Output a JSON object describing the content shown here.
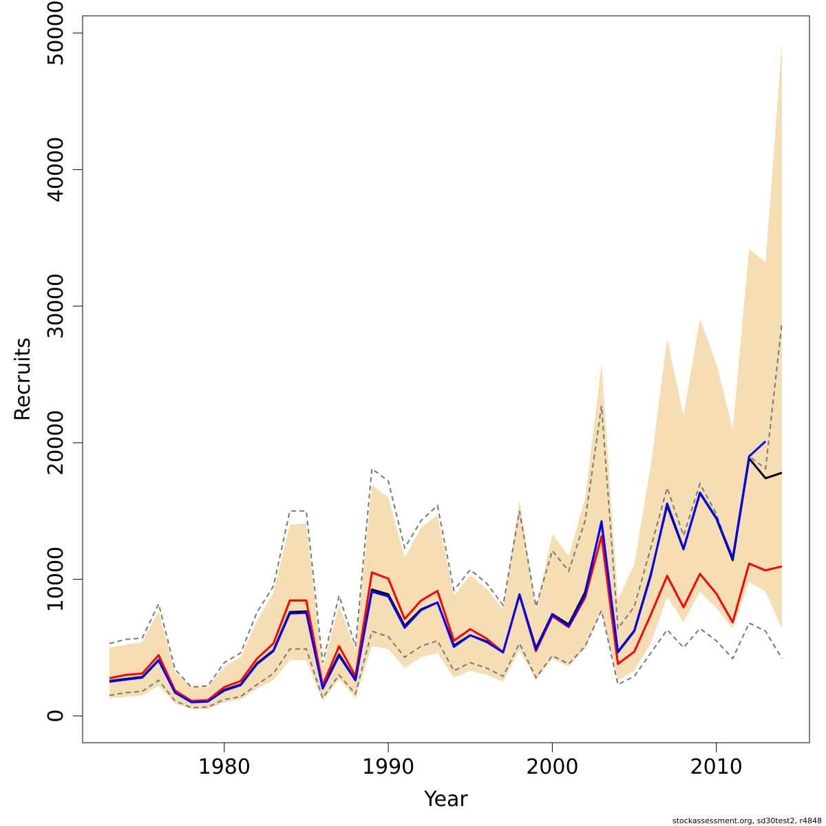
{
  "chart_data": {
    "type": "line",
    "title": "",
    "xlabel": "Year",
    "ylabel": "Recruits",
    "xlim": [
      1973,
      2014
    ],
    "ylim": [
      0,
      50000
    ],
    "x_ticks": [
      1980,
      1990,
      2000,
      2010
    ],
    "y_ticks": [
      0,
      10000,
      20000,
      30000,
      40000,
      50000
    ],
    "grid": false,
    "legend": "none",
    "colors": {
      "band": "#F5DEB3",
      "red_series": "#FF0000",
      "blue_series": "#0000FF",
      "black_series": "#000000",
      "dashed": "#777777"
    },
    "years": [
      1973,
      1974,
      1975,
      1976,
      1977,
      1978,
      1979,
      1980,
      1981,
      1982,
      1983,
      1984,
      1985,
      1986,
      1987,
      1988,
      1989,
      1990,
      1991,
      1992,
      1993,
      1994,
      1995,
      1996,
      1997,
      1998,
      1999,
      2000,
      2001,
      2002,
      2003,
      2004,
      2005,
      2006,
      2007,
      2008,
      2009,
      2010,
      2011,
      2012,
      2013,
      2014
    ],
    "band_upper": [
      5000,
      5200,
      5400,
      7700,
      3200,
      2100,
      2100,
      3600,
      4300,
      7000,
      9000,
      14000,
      14100,
      3600,
      8100,
      4800,
      16900,
      16000,
      11600,
      13800,
      14700,
      8800,
      10300,
      9300,
      7800,
      15800,
      7800,
      13300,
      11700,
      15900,
      25800,
      8500,
      11100,
      18300,
      27600,
      22000,
      29100,
      25800,
      21000,
      34200,
      33200,
      49300
    ],
    "band_lower": [
      1300,
      1400,
      1500,
      2200,
      900,
      500,
      500,
      1000,
      1200,
      2000,
      2600,
      4100,
      4100,
      1100,
      2700,
      1300,
      5100,
      4900,
      3500,
      4300,
      4600,
      2800,
      3300,
      3000,
      2500,
      4800,
      2600,
      4200,
      3600,
      4900,
      7600,
      2600,
      3300,
      5300,
      8700,
      6900,
      9100,
      7900,
      6400,
      9800,
      9100,
      6400
    ],
    "series": [
      {
        "values": [
          2750,
          3000,
          3100,
          4450,
          1850,
          1100,
          1150,
          2100,
          2550,
          4200,
          5300,
          8450,
          8450,
          2250,
          5100,
          2900,
          10500,
          10050,
          7100,
          8450,
          9150,
          5500,
          6350,
          5650,
          4650,
          8850,
          4750,
          7300,
          6500,
          8650,
          13150,
          3800,
          4700,
          7400,
          10250,
          7950,
          10400,
          8950,
          6850,
          11150,
          10650,
          10950
        ]
      },
      {
        "values": [
          2550,
          2700,
          2850,
          4100,
          1750,
          1050,
          1100,
          1900,
          2300,
          3850,
          4800,
          7600,
          7650,
          2100,
          4500,
          2650,
          9250,
          8900,
          6600,
          7800,
          8300,
          5150,
          5900,
          5450,
          4650,
          8900,
          4950,
          7450,
          6700,
          9050,
          14150,
          4700,
          6250,
          10350,
          15400,
          12200,
          16300,
          14450,
          11400,
          18850,
          17400,
          17800
        ]
      },
      {
        "values": [
          2500,
          2650,
          2800,
          4050,
          1700,
          1000,
          1050,
          1850,
          2250,
          3800,
          4750,
          7500,
          7550,
          2000,
          4400,
          2600,
          9100,
          8750,
          6450,
          7750,
          8300,
          5050,
          5900,
          5400,
          4650,
          8850,
          4850,
          7400,
          6550,
          8850,
          14250,
          4650,
          6200,
          10250,
          15550,
          12250,
          16350,
          14500,
          11550,
          19000,
          20100,
          null
        ]
      },
      {
        "values": [
          5300,
          5600,
          5700,
          8200,
          3400,
          2100,
          2200,
          3900,
          4600,
          7600,
          9500,
          15000,
          15000,
          3900,
          8800,
          5100,
          18100,
          17200,
          12300,
          14300,
          15400,
          9200,
          10700,
          9700,
          8100,
          15000,
          8000,
          12100,
          10600,
          14300,
          22700,
          6400,
          8000,
          12300,
          16700,
          13200,
          17000,
          14800,
          11300,
          19000,
          18100,
          28800
        ],
        "dashed": true
      },
      {
        "values": [
          1500,
          1700,
          1800,
          2600,
          1100,
          600,
          650,
          1200,
          1400,
          2300,
          3100,
          4900,
          4900,
          1300,
          3000,
          1600,
          6200,
          5800,
          4300,
          5100,
          5500,
          3300,
          3900,
          3500,
          2900,
          5300,
          2800,
          4400,
          3800,
          5100,
          7700,
          2300,
          2900,
          4600,
          6300,
          5000,
          6400,
          5500,
          4200,
          6800,
          6200,
          4200
        ],
        "dashed": true
      }
    ]
  },
  "footer": "stockassessment.org, sd30test2, r4848"
}
